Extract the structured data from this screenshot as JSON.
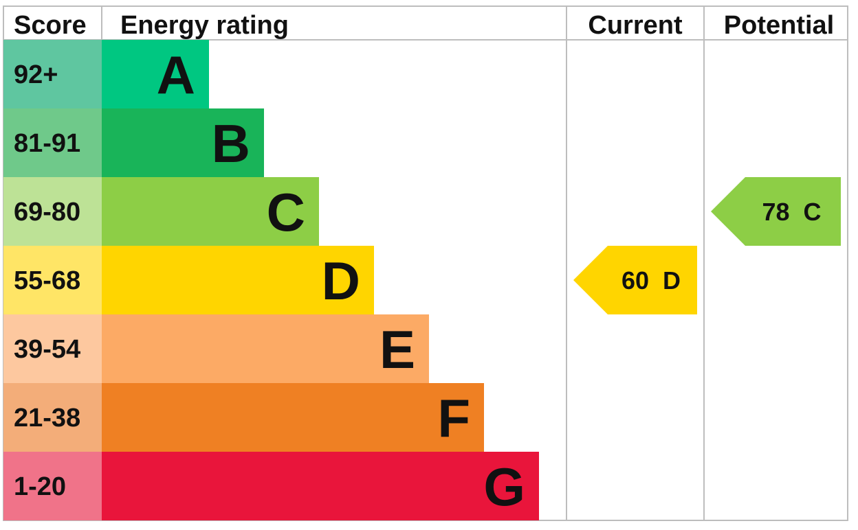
{
  "chart_data": {
    "type": "bar",
    "headers": {
      "score": "Score",
      "rating": "Energy rating",
      "current": "Current",
      "potential": "Potential"
    },
    "bands": [
      {
        "range": "92+",
        "letter": "A",
        "color": "#00c781",
        "score_color": "#5fc6a0"
      },
      {
        "range": "81-91",
        "letter": "B",
        "color": "#19b459",
        "score_color": "#6fc98a"
      },
      {
        "range": "69-80",
        "letter": "C",
        "color": "#8dce46",
        "score_color": "#bde296"
      },
      {
        "range": "55-68",
        "letter": "D",
        "color": "#ffd500",
        "score_color": "#ffe566"
      },
      {
        "range": "39-54",
        "letter": "E",
        "color": "#fcaa65",
        "score_color": "#fdc89f"
      },
      {
        "range": "21-38",
        "letter": "F",
        "color": "#ef8023",
        "score_color": "#f3ad79"
      },
      {
        "range": "1-20",
        "letter": "G",
        "color": "#e9153b",
        "score_color": "#f07389"
      }
    ],
    "current": {
      "value": 60,
      "letter": "D",
      "color": "#ffd500",
      "label": "60  D"
    },
    "potential": {
      "value": 78,
      "letter": "C",
      "color": "#8dce46",
      "label": "78  C"
    }
  }
}
